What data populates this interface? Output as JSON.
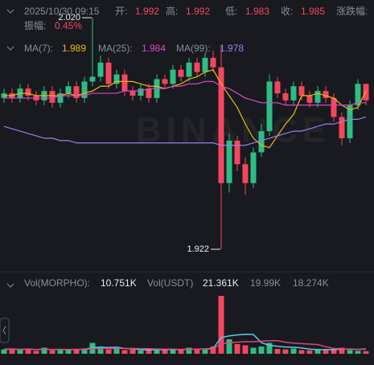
{
  "header": {
    "datetime": "2025/10/30 09:15",
    "open_label": "开:",
    "open": 1.992,
    "high_label": "高:",
    "high": 1.992,
    "low_label": "低:",
    "low": 1.983,
    "close_label": "收:",
    "close": 1.985,
    "change_label": "涨跌幅:",
    "amplitude_label": "振幅:",
    "amplitude": "0.45%"
  },
  "chart_data": {
    "type": "candlestick",
    "ylim": [
      1.9135,
      2.0275
    ],
    "up_color": "#2ebd85",
    "down_color": "#f6465d",
    "watermark": "BINANCE",
    "open": [
      1.986,
      1.988,
      1.986,
      1.99,
      1.987,
      1.985,
      1.989,
      1.984,
      1.988,
      1.991,
      1.986,
      1.993,
      1.995,
      2.001,
      1.992,
      1.996,
      1.989,
      1.987,
      1.99,
      1.986,
      1.994,
      1.992,
      1.998,
      1.995,
      2.001,
      1.997,
      2.003,
      1.999,
      1.95,
      1.968,
      1.958,
      1.95,
      1.963,
      1.972,
      1.993,
      1.988,
      1.985,
      1.991,
      1.987,
      1.984,
      1.989,
      1.986,
      1.978,
      1.969,
      1.983,
      1.992
    ],
    "high": [
      1.99,
      1.99,
      1.992,
      1.992,
      1.989,
      1.991,
      1.991,
      1.99,
      1.993,
      1.993,
      1.995,
      2.02,
      2.004,
      2.003,
      1.998,
      1.998,
      1.991,
      1.992,
      1.992,
      1.996,
      1.996,
      2.0,
      2.0,
      2.003,
      2.003,
      2.005,
      2.006,
      2.008,
      1.971,
      1.97,
      1.961,
      1.965,
      1.975,
      1.996,
      1.995,
      1.99,
      1.993,
      1.993,
      1.989,
      1.991,
      1.991,
      1.988,
      1.98,
      1.985,
      1.994,
      1.992
    ],
    "low": [
      1.984,
      1.984,
      1.984,
      1.985,
      1.983,
      1.983,
      1.982,
      1.982,
      1.986,
      1.984,
      1.984,
      1.991,
      1.993,
      1.99,
      1.99,
      1.987,
      1.985,
      1.985,
      1.984,
      1.984,
      1.99,
      1.99,
      1.993,
      1.993,
      1.995,
      1.995,
      1.997,
      1.922,
      1.946,
      1.955,
      1.945,
      1.948,
      1.961,
      1.97,
      1.986,
      1.983,
      1.983,
      1.985,
      1.982,
      1.982,
      1.984,
      1.976,
      1.966,
      1.967,
      1.981,
      1.983
    ],
    "close": [
      1.988,
      1.986,
      1.99,
      1.987,
      1.985,
      1.989,
      1.984,
      1.988,
      1.991,
      1.986,
      1.993,
      1.995,
      2.001,
      1.992,
      1.996,
      1.989,
      1.987,
      1.99,
      1.986,
      1.994,
      1.992,
      1.998,
      1.995,
      2.001,
      1.997,
      2.003,
      1.999,
      1.95,
      1.968,
      1.958,
      1.95,
      1.963,
      1.972,
      1.993,
      1.988,
      1.985,
      1.991,
      1.987,
      1.984,
      1.989,
      1.986,
      1.978,
      1.969,
      1.983,
      1.992,
      1.985
    ],
    "ma": [
      {
        "name": "MA(7):",
        "value": 1.989,
        "color": "#f0b90b",
        "values": [
          1.987,
          1.987,
          1.988,
          1.988,
          1.987,
          1.987,
          1.987,
          1.987,
          1.988,
          1.987,
          1.988,
          1.989,
          1.991,
          1.991,
          1.993,
          1.993,
          1.993,
          1.992,
          1.991,
          1.991,
          1.99,
          1.991,
          1.992,
          1.994,
          1.995,
          1.997,
          1.998,
          1.992,
          1.987,
          1.982,
          1.975,
          1.969,
          1.966,
          1.965,
          1.97,
          1.975,
          1.979,
          1.987,
          1.987,
          1.988,
          1.987,
          1.986,
          1.983,
          1.981,
          1.982,
          1.989
        ]
      },
      {
        "name": "MA(25):",
        "value": 1.984,
        "color": "#d948c8",
        "values": [
          1.986,
          1.986,
          1.986,
          1.986,
          1.986,
          1.986,
          1.986,
          1.987,
          1.987,
          1.987,
          1.987,
          1.988,
          1.988,
          1.988,
          1.988,
          1.989,
          1.989,
          1.989,
          1.99,
          1.99,
          1.99,
          1.991,
          1.991,
          1.992,
          1.992,
          1.993,
          1.993,
          1.991,
          1.99,
          1.988,
          1.986,
          1.985,
          1.984,
          1.984,
          1.984,
          1.983,
          1.983,
          1.983,
          1.983,
          1.983,
          1.983,
          1.983,
          1.983,
          1.983,
          1.984,
          1.984
        ]
      },
      {
        "name": "MA(99):",
        "value": 1.978,
        "color": "#9d7fe6",
        "values": [
          1.974,
          1.973,
          1.972,
          1.971,
          1.97,
          1.969,
          1.969,
          1.968,
          1.968,
          1.967,
          1.967,
          1.967,
          1.967,
          1.967,
          1.967,
          1.967,
          1.967,
          1.967,
          1.967,
          1.967,
          1.967,
          1.967,
          1.967,
          1.967,
          1.967,
          1.967,
          1.967,
          1.966,
          1.966,
          1.966,
          1.966,
          1.967,
          1.968,
          1.969,
          1.97,
          1.971,
          1.972,
          1.972,
          1.973,
          1.974,
          1.975,
          1.975,
          1.976,
          1.977,
          1.977,
          1.978
        ]
      }
    ],
    "annotations": [
      {
        "value": 2.02,
        "label": "2.020",
        "index": 11
      },
      {
        "value": 1.922,
        "index": 27
      }
    ],
    "volume": {
      "type": "bar",
      "title": "Vol(MORPHO):",
      "current": "10.751K",
      "usdt_title": "Vol(USDT)",
      "usdt": "21.361K",
      "ylim": [
        0,
        250
      ],
      "values": [
        18,
        22,
        15,
        20,
        12,
        25,
        14,
        18,
        16,
        20,
        22,
        45,
        30,
        18,
        20,
        15,
        17,
        14,
        16,
        22,
        18,
        20,
        15,
        25,
        18,
        22,
        30,
        240,
        60,
        40,
        35,
        25,
        30,
        45,
        20,
        18,
        22,
        15,
        14,
        16,
        18,
        20,
        25,
        15,
        12,
        10.751
      ],
      "ma": [
        {
          "label": "19.99K",
          "color": "#5ec9e6",
          "values": [
            19,
            19,
            18,
            19,
            17,
            19,
            17,
            18,
            17,
            18,
            18,
            25,
            27,
            26,
            27,
            22,
            20,
            17,
            16,
            17,
            17,
            18,
            17,
            19,
            19,
            20,
            22,
            67,
            74,
            78,
            81,
            80,
            46,
            35,
            31,
            28,
            27,
            24,
            19,
            17,
            17,
            17,
            19,
            19,
            18,
            19.99
          ]
        },
        {
          "label": "18.274K",
          "color": "#e0457b",
          "values": [
            18,
            18,
            18,
            18,
            18,
            18,
            18,
            18,
            18,
            18,
            18,
            21,
            22,
            22,
            22,
            22,
            22,
            21,
            21,
            19,
            19,
            19,
            18,
            19,
            19,
            19,
            20,
            42,
            46,
            48,
            50,
            50,
            52,
            54,
            54,
            48,
            44,
            42,
            40,
            38,
            29,
            22,
            20,
            18,
            18,
            18.274
          ]
        }
      ]
    }
  }
}
